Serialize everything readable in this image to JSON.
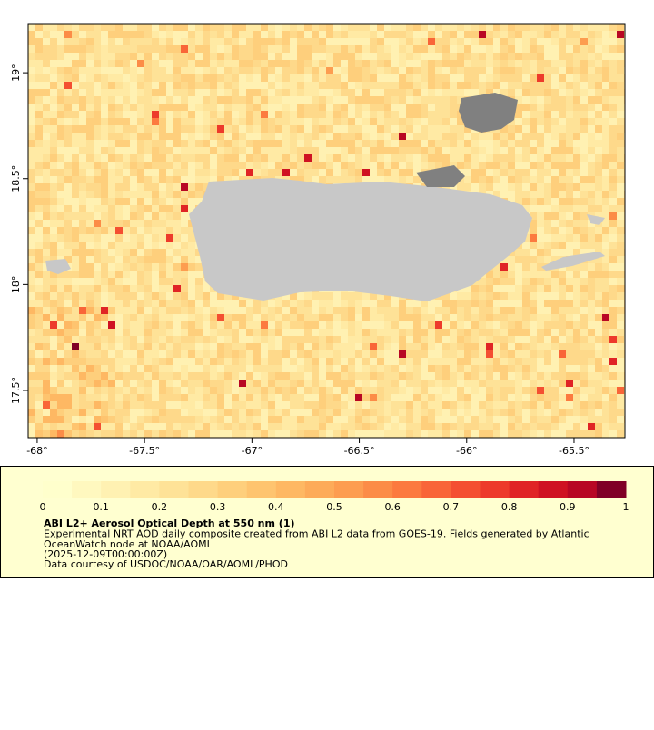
{
  "map": {
    "xlim": [
      -68.042,
      -65.263
    ],
    "ylim": [
      17.277,
      19.232
    ],
    "xticks": [
      {
        "value": -68,
        "label": "-68°"
      },
      {
        "value": -67.5,
        "label": "-67.5°"
      },
      {
        "value": -67,
        "label": "-67°"
      },
      {
        "value": -66.5,
        "label": "-66.5°"
      },
      {
        "value": -66,
        "label": "-66°"
      },
      {
        "value": -65.5,
        "label": "-65.5°"
      }
    ],
    "yticks": [
      {
        "value": 17.5,
        "label": "17.5°"
      },
      {
        "value": 18,
        "label": "18°"
      },
      {
        "value": 18.5,
        "label": "18.5°"
      },
      {
        "value": 19,
        "label": "19°"
      }
    ]
  },
  "colorbar": {
    "lim": [
      0,
      1
    ],
    "ticks": [
      0,
      0.1,
      0.2,
      0.3,
      0.4,
      0.5,
      0.6,
      0.7,
      0.8,
      0.9,
      1
    ],
    "colors": [
      "#ffffcc",
      "#fff8bf",
      "#fff1b2",
      "#ffeaa4",
      "#fee297",
      "#fed98a",
      "#fecf7c",
      "#fec46f",
      "#feb863",
      "#fdab59",
      "#fd9d50",
      "#fc8c47",
      "#fc7a3f",
      "#f96538",
      "#f44f31",
      "#ed3a2b",
      "#e02425",
      "#cf1222",
      "#b80724",
      "#800026"
    ]
  },
  "caption": {
    "title": "ABI L2+ Aerosol Optical Depth at 550 nm (1)",
    "lines": [
      "Experimental NRT AOD daily composite created from ABI L2 data from GOES-19. Fields generated by Atlantic",
      "OceanWatch node at NOAA/AOML",
      "(2025-12-09T00:00:00Z)",
      "Data courtesy of USDOC/NOAA/OAR/AOML/PHOD"
    ]
  }
}
